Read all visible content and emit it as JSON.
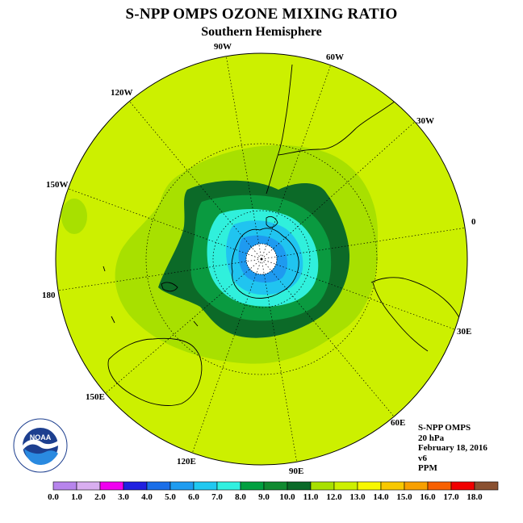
{
  "title": "S-NPP OMPS OZONE MIXING RATIO",
  "subtitle": "Southern Hemisphere",
  "longitude_labels": [
    "90W",
    "60W",
    "30W",
    "0",
    "30E",
    "60E",
    "90E",
    "120E",
    "150E",
    "180",
    "150W",
    "120W"
  ],
  "info": {
    "instrument": "S-NPP OMPS",
    "level": "20 hPa",
    "date": "February 18, 2016",
    "version": "v6",
    "units": "PPM"
  },
  "logo": {
    "text": "NOAA",
    "icon": "noaa-logo"
  },
  "colorbar": {
    "ticks": [
      "0.0",
      "1.0",
      "2.0",
      "3.0",
      "4.0",
      "5.0",
      "6.0",
      "7.0",
      "8.0",
      "9.0",
      "10.0",
      "11.0",
      "12.0",
      "13.0",
      "14.0",
      "15.0",
      "16.0",
      "17.0",
      "18.0"
    ],
    "colors": [
      "#b784ec",
      "#d9aef0",
      "#f000f0",
      "#2020e0",
      "#1a6ee8",
      "#1e9cf0",
      "#20c8f0",
      "#30f0e0",
      "#00a040",
      "#108a30",
      "#0a6a28",
      "#a8e000",
      "#cdf000",
      "#f8f800",
      "#f8c800",
      "#f8a000",
      "#f86000",
      "#f00000",
      "#8a5030"
    ]
  }
}
